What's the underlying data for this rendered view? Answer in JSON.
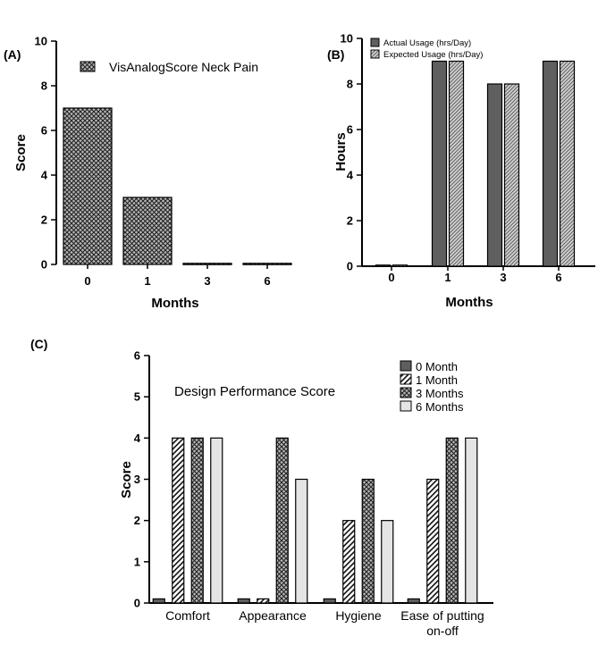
{
  "colors": {
    "dark_fill": "#5f5f5f",
    "light_fill": "#e4e4e4",
    "pattern_stroke": "#222222"
  },
  "chart_data": [
    {
      "id": "A",
      "panel_label": "(A)",
      "type": "bar",
      "title": "",
      "xlabel": "Months",
      "ylabel": "Score",
      "ylim": [
        0,
        10
      ],
      "yticks": [
        "0",
        "2",
        "4",
        "6",
        "8",
        "10"
      ],
      "categories": [
        "0",
        "1",
        "3",
        "6"
      ],
      "series": [
        {
          "name": "VisAnalogScore Neck Pain",
          "values": [
            7,
            3,
            0.05,
            0.05
          ],
          "pattern": "crosshatch"
        }
      ]
    },
    {
      "id": "B",
      "panel_label": "(B)",
      "type": "bar",
      "title": "",
      "xlabel": "Months",
      "ylabel": "Hours",
      "ylim": [
        0,
        10
      ],
      "yticks": [
        "0",
        "2",
        "4",
        "6",
        "8",
        "10"
      ],
      "categories": [
        "0",
        "1",
        "3",
        "6"
      ],
      "series": [
        {
          "name": "Actual Usage (hrs/Day)",
          "values": [
            0.05,
            9,
            8,
            9
          ],
          "pattern": "dark"
        },
        {
          "name": "Expected Usage (hrs/Day)",
          "values": [
            0.05,
            9,
            8,
            9
          ],
          "pattern": "hatch"
        }
      ]
    },
    {
      "id": "C",
      "panel_label": "(C)",
      "type": "bar",
      "title": "Design Performance Score",
      "xlabel": "",
      "ylabel": "Score",
      "ylim": [
        0,
        6
      ],
      "yticks": [
        "0",
        "1",
        "2",
        "3",
        "4",
        "5",
        "6"
      ],
      "categories": [
        "Comfort",
        "Appearance",
        "Hygiene",
        "Ease of putting on-off"
      ],
      "category_lines": [
        [
          "Comfort"
        ],
        [
          "Appearance"
        ],
        [
          "Hygiene"
        ],
        [
          "Ease of putting",
          "on-off"
        ]
      ],
      "series": [
        {
          "name": "0 Month",
          "values": [
            0.1,
            0.1,
            0.1,
            0.1
          ],
          "pattern": "dark"
        },
        {
          "name": "1 Month",
          "values": [
            4,
            0.1,
            2,
            3
          ],
          "pattern": "diag"
        },
        {
          "name": "3 Months",
          "values": [
            4,
            4,
            3,
            4
          ],
          "pattern": "crosshatch"
        },
        {
          "name": "6 Months",
          "values": [
            4,
            3,
            2,
            4
          ],
          "pattern": "light"
        }
      ]
    }
  ]
}
